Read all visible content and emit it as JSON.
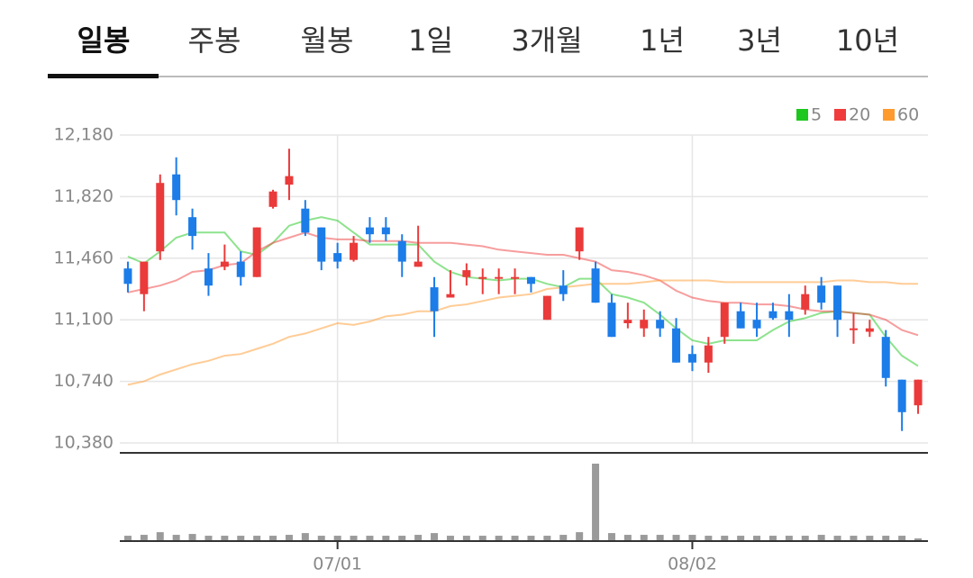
{
  "tabs": {
    "items": [
      "일봉",
      "주봉",
      "월봉",
      "1일",
      "3개월",
      "1년",
      "3년",
      "10년"
    ],
    "selected": 0
  },
  "chart_data": {
    "type": "candlestick",
    "categories": [
      null,
      null,
      null,
      null,
      null,
      null,
      null,
      null,
      null,
      null,
      null,
      null,
      null,
      "07/01",
      null,
      null,
      null,
      null,
      null,
      null,
      null,
      null,
      null,
      null,
      null,
      null,
      null,
      null,
      null,
      null,
      null,
      null,
      null,
      null,
      null,
      "08/02",
      null,
      null,
      null,
      null,
      null,
      null,
      null,
      null,
      null,
      null,
      null,
      null,
      null,
      null
    ],
    "open": [
      11400,
      11250,
      11500,
      11950,
      11700,
      11400,
      11410,
      11440,
      11350,
      11760,
      11890,
      11750,
      11640,
      11490,
      11450,
      11640,
      11640,
      11560,
      11410,
      11290,
      11230,
      11350,
      11340,
      11340,
      11340,
      11350,
      11100,
      11300,
      11500,
      11400,
      11200,
      11080,
      11050,
      11100,
      11050,
      10900,
      10850,
      11000,
      11150,
      11100,
      11150,
      11150,
      11160,
      11300,
      11300,
      11040,
      11030,
      11000,
      10750,
      10600
    ],
    "high": [
      11440,
      11440,
      11950,
      12050,
      11750,
      11490,
      11540,
      11500,
      11640,
      11860,
      12100,
      11800,
      11640,
      11550,
      11590,
      11700,
      11700,
      11600,
      11650,
      11350,
      11390,
      11430,
      11400,
      11400,
      11400,
      11350,
      11240,
      11390,
      11640,
      11440,
      11250,
      11200,
      11160,
      11150,
      11110,
      10950,
      11000,
      11200,
      11200,
      11200,
      11200,
      11250,
      11300,
      11350,
      11300,
      11140,
      11100,
      11040,
      10750,
      10750
    ],
    "low": [
      11260,
      11150,
      11450,
      11710,
      11510,
      11240,
      11390,
      11300,
      11350,
      11750,
      11800,
      11590,
      11390,
      11400,
      11440,
      11550,
      11560,
      11350,
      11410,
      11000,
      11230,
      11300,
      11250,
      11250,
      11250,
      11260,
      11100,
      11210,
      11450,
      11200,
      11000,
      11050,
      11000,
      11000,
      10850,
      10800,
      10790,
      10960,
      11050,
      11000,
      11100,
      11000,
      11130,
      11160,
      11000,
      10960,
      11000,
      10710,
      10450,
      10550
    ],
    "close": [
      11310,
      11440,
      11900,
      11800,
      11590,
      11300,
      11440,
      11350,
      11640,
      11850,
      11940,
      11610,
      11440,
      11440,
      11550,
      11600,
      11600,
      11440,
      11440,
      11150,
      11250,
      11390,
      11350,
      11350,
      11350,
      11310,
      11240,
      11250,
      11640,
      11200,
      11000,
      11100,
      11100,
      11050,
      10850,
      10850,
      10950,
      11200,
      11050,
      11050,
      11110,
      11100,
      11250,
      11200,
      11100,
      11050,
      11050,
      10760,
      10560,
      10750
    ],
    "up_color": "#ea3a3a",
    "down_color": "#1c7ce8",
    "series": [
      {
        "name": "5",
        "color": "#1ec71e",
        "values": [
          11470,
          11430,
          11500,
          11580,
          11610,
          11610,
          11610,
          11500,
          11480,
          11550,
          11650,
          11680,
          11700,
          11680,
          11610,
          11540,
          11540,
          11540,
          11540,
          11440,
          11380,
          11350,
          11340,
          11330,
          11340,
          11340,
          11310,
          11290,
          11340,
          11340,
          11250,
          11230,
          11200,
          11130,
          11050,
          10980,
          10960,
          10980,
          10980,
          10980,
          11040,
          11090,
          11110,
          11140,
          11150,
          11140,
          11130,
          11000,
          10890,
          10830
        ]
      },
      {
        "name": "20",
        "color": "#f03c3c",
        "values": [
          11260,
          11280,
          11300,
          11330,
          11380,
          11390,
          11420,
          11430,
          11500,
          11550,
          11580,
          11610,
          11580,
          11570,
          11570,
          11560,
          11560,
          11560,
          11550,
          11550,
          11550,
          11540,
          11530,
          11510,
          11500,
          11490,
          11480,
          11480,
          11460,
          11440,
          11390,
          11380,
          11360,
          11330,
          11270,
          11230,
          11210,
          11200,
          11200,
          11190,
          11190,
          11180,
          11160,
          11150,
          11150,
          11140,
          11130,
          11100,
          11040,
          11010
        ]
      },
      {
        "name": "60",
        "color": "#ff9a2e",
        "values": [
          10720,
          10740,
          10780,
          10810,
          10840,
          10860,
          10890,
          10900,
          10930,
          10960,
          11000,
          11020,
          11050,
          11080,
          11070,
          11090,
          11120,
          11130,
          11150,
          11150,
          11180,
          11190,
          11210,
          11230,
          11240,
          11250,
          11280,
          11290,
          11300,
          11310,
          11310,
          11310,
          11320,
          11330,
          11330,
          11330,
          11330,
          11320,
          11320,
          11320,
          11320,
          11320,
          11320,
          11320,
          11330,
          11330,
          11320,
          11320,
          11310,
          11310
        ]
      }
    ],
    "volume": {
      "color": "#9a9a9a",
      "values": [
        5,
        6,
        9,
        6,
        7,
        5,
        5,
        5,
        5,
        5,
        6,
        8,
        5,
        5,
        5,
        5,
        5,
        5,
        6,
        8,
        5,
        5,
        5,
        5,
        5,
        5,
        5,
        6,
        9,
        86,
        8,
        6,
        6,
        6,
        6,
        6,
        5,
        5,
        5,
        5,
        5,
        5,
        5,
        6,
        5,
        5,
        5,
        5,
        5,
        2
      ]
    },
    "ylim": [
      10380,
      12180
    ],
    "yticks": [
      {
        "value": 10380,
        "label": "10,380"
      },
      {
        "value": 10740,
        "label": "10,740"
      },
      {
        "value": 11100,
        "label": "11,100"
      },
      {
        "value": 11460,
        "label": "11,460"
      },
      {
        "value": 11820,
        "label": "11,820"
      },
      {
        "value": 12180,
        "label": "12,180"
      }
    ],
    "grid": true
  }
}
